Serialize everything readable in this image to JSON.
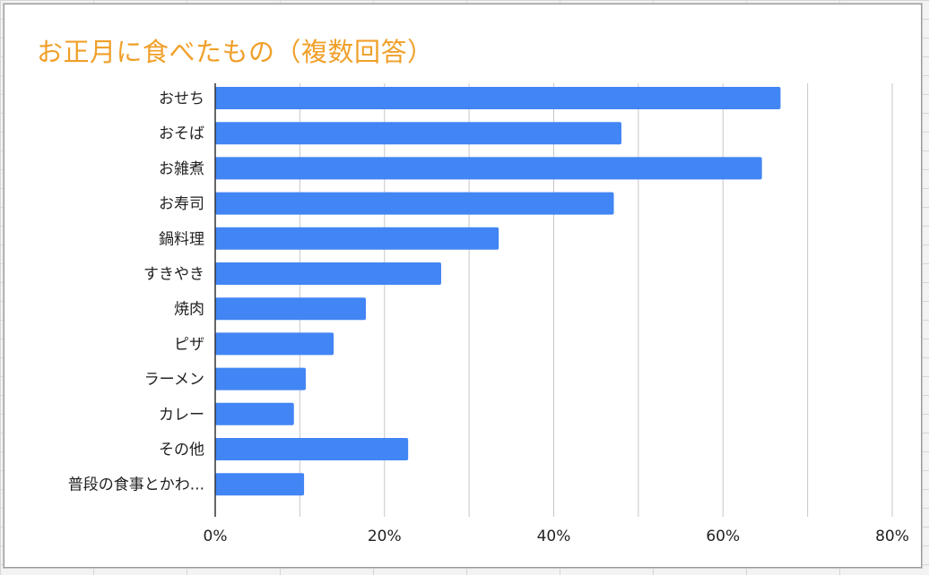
{
  "colors": {
    "title": "#f0a02a",
    "bar": "#4285f4",
    "grid": "#c7c7c7",
    "axis": "#333333"
  },
  "chart_data": {
    "type": "bar",
    "orientation": "horizontal",
    "title": "お正月に食べたもの（複数回答）",
    "categories": [
      "おせち",
      "おそば",
      "お雑煮",
      "お寿司",
      "鍋料理",
      "すきやき",
      "焼肉",
      "ピザ",
      "ラーメン",
      "カレー",
      "その他",
      "普段の食事とかわ..."
    ],
    "values": [
      0.668,
      0.48,
      0.646,
      0.471,
      0.335,
      0.267,
      0.178,
      0.14,
      0.107,
      0.093,
      0.228,
      0.105
    ],
    "xlim": [
      0,
      0.8
    ],
    "xticks": [
      0,
      0.2,
      0.4,
      0.6,
      0.8
    ],
    "xtick_labels": [
      "0%",
      "20%",
      "40%",
      "60%",
      "80%"
    ],
    "minor_gridlines": [
      0.1,
      0.3,
      0.5,
      0.7
    ],
    "xlabel": "",
    "ylabel": "",
    "legend": "none"
  }
}
